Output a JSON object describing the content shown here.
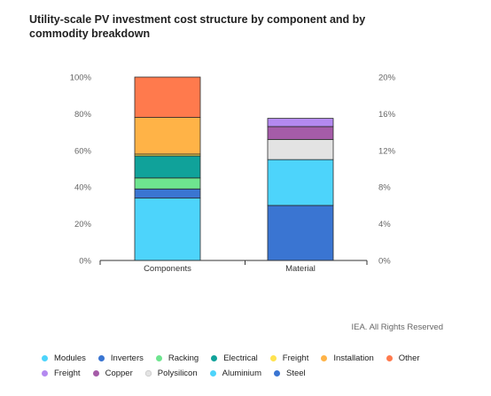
{
  "title": "Utility-scale PV investment cost structure by component and by commodity breakdown",
  "credit": "IEA. All Rights Reserved",
  "chart_data": {
    "type": "bar",
    "stacked": true,
    "categories": [
      "Components",
      "Material"
    ],
    "left_axis": {
      "ticks": [
        "0%",
        "20%",
        "40%",
        "60%",
        "80%",
        "100%"
      ],
      "range": [
        0,
        100
      ]
    },
    "right_axis": {
      "ticks": [
        "0%",
        "4%",
        "8%",
        "12%",
        "16%",
        "20%"
      ],
      "range": [
        0,
        20
      ]
    },
    "groups": [
      {
        "category": "Components",
        "axis": "left",
        "series": [
          {
            "name": "Modules",
            "value": 34,
            "color": "#4dd4fb"
          },
          {
            "name": "Inverters",
            "value": 5,
            "color": "#3a75d2"
          },
          {
            "name": "Racking",
            "value": 6,
            "color": "#6ee58f"
          },
          {
            "name": "Electrical",
            "value": 12,
            "color": "#10a29a"
          },
          {
            "name": "Freight",
            "value": 1,
            "color": "#ffe34f"
          },
          {
            "name": "Installation",
            "value": 20,
            "color": "#ffb347"
          },
          {
            "name": "Other",
            "value": 22,
            "color": "#ff7a4d"
          }
        ]
      },
      {
        "category": "Material",
        "axis": "right",
        "series": [
          {
            "name": "Steel",
            "value": 6,
            "color": "#3a75d2"
          },
          {
            "name": "Aluminium",
            "value": 5,
            "color": "#4dd4fb"
          },
          {
            "name": "Polysilicon",
            "value": 2.2,
            "color": "#e3e3e3"
          },
          {
            "name": "Copper",
            "value": 1.4,
            "color": "#a55ca8"
          },
          {
            "name": "Freight",
            "value": 0.9,
            "color": "#b489f0"
          }
        ]
      }
    ],
    "legend": {
      "row1": [
        {
          "name": "Modules",
          "color": "#4dd4fb"
        },
        {
          "name": "Inverters",
          "color": "#3a75d2"
        },
        {
          "name": "Racking",
          "color": "#6ee58f"
        },
        {
          "name": "Electrical",
          "color": "#10a29a"
        },
        {
          "name": "Freight",
          "color": "#ffe34f"
        },
        {
          "name": "Installation",
          "color": "#ffb347"
        },
        {
          "name": "Other",
          "color": "#ff7a4d"
        }
      ],
      "row2": [
        {
          "name": "Freight",
          "color": "#b489f0"
        },
        {
          "name": "Copper",
          "color": "#a55ca8"
        },
        {
          "name": "Polysilicon",
          "color": "#e3e3e3"
        },
        {
          "name": "Aluminium",
          "color": "#4dd4fb"
        },
        {
          "name": "Steel",
          "color": "#3a75d2"
        }
      ]
    }
  }
}
